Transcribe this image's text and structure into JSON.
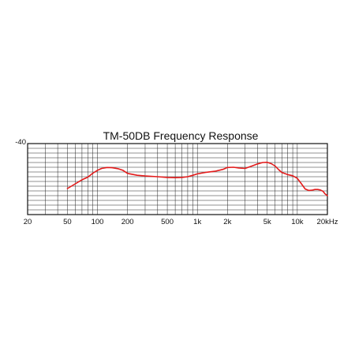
{
  "chart_data": {
    "type": "line",
    "title": "TM-50DB Frequency Response",
    "xscale": "log",
    "xlim": [
      20,
      20000
    ],
    "xticks": [
      {
        "value": 20,
        "label": "20"
      },
      {
        "value": 50,
        "label": "50"
      },
      {
        "value": 100,
        "label": "100"
      },
      {
        "value": 200,
        "label": "200"
      },
      {
        "value": 500,
        "label": "500"
      },
      {
        "value": 1000,
        "label": "1k"
      },
      {
        "value": 2000,
        "label": "2k"
      },
      {
        "value": 5000,
        "label": "5k"
      },
      {
        "value": 10000,
        "label": "10k"
      },
      {
        "value": 20000,
        "label": "20kHz"
      }
    ],
    "ylim": [
      -40,
      -70
    ],
    "yticks": [
      {
        "value": -40,
        "label": "-40"
      }
    ],
    "grid": true,
    "colors": {
      "line": "#e31b1b",
      "grid": "#222222",
      "text": "#111111"
    },
    "series": [
      {
        "x": [
          50,
          60,
          70,
          80,
          90,
          100,
          110,
          125,
          140,
          160,
          180,
          200,
          250,
          300,
          400,
          500,
          600,
          700,
          800,
          900,
          1000,
          1200,
          1500,
          1800,
          2000,
          2300,
          2600,
          3000,
          3500,
          4000,
          4500,
          5000,
          5500,
          6000,
          6500,
          7000,
          8000,
          9000,
          10000,
          11000,
          12000,
          13000,
          14000,
          15000,
          16000,
          17000,
          18000,
          19000,
          20000
        ],
        "values": [
          -59,
          -57,
          -55.3,
          -54.2,
          -52.5,
          -51.3,
          -50.5,
          -50.1,
          -50.2,
          -50.6,
          -51.3,
          -52.6,
          -53.4,
          -53.7,
          -54.0,
          -54.3,
          -54.4,
          -54.3,
          -54.0,
          -53.4,
          -52.8,
          -52.2,
          -51.7,
          -50.9,
          -50.1,
          -50.0,
          -50.3,
          -50.5,
          -49.5,
          -48.6,
          -48.0,
          -47.9,
          -48.5,
          -49.5,
          -51.0,
          -52.2,
          -53.1,
          -53.6,
          -54.7,
          -57.0,
          -59.2,
          -59.8,
          -59.7,
          -59.4,
          -59.4,
          -59.6,
          -60.1,
          -61.3,
          -62.0
        ]
      }
    ]
  }
}
